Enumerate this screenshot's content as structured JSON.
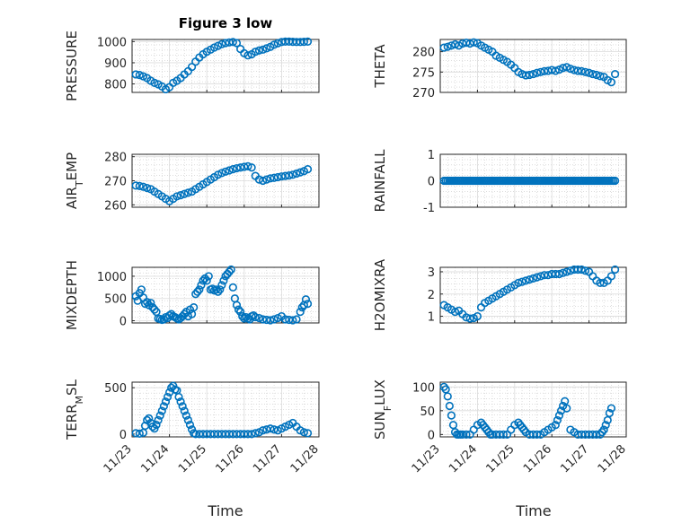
{
  "figure": {
    "title": "Figure 3 low",
    "x_axis_label": "Time",
    "x_tick_labels": [
      "11/23",
      "11/24",
      "11/25",
      "11/26",
      "11/27",
      "11/28"
    ],
    "marker_color": "#0072BD"
  },
  "chart_data": [
    {
      "type": "scatter",
      "ylabel": "PRESSURE",
      "title": "Figure 3 low",
      "xlim": [
        0,
        5
      ],
      "ylim": [
        760,
        1010
      ],
      "yticks": [
        800,
        900,
        1000
      ],
      "grid": true,
      "x": [
        0.1,
        0.2,
        0.3,
        0.4,
        0.5,
        0.6,
        0.7,
        0.8,
        0.9,
        1.0,
        1.1,
        1.2,
        1.3,
        1.4,
        1.5,
        1.6,
        1.7,
        1.8,
        1.9,
        2.0,
        2.1,
        2.2,
        2.3,
        2.4,
        2.5,
        2.6,
        2.7,
        2.8,
        2.9,
        3.0,
        3.1,
        3.2,
        3.3,
        3.4,
        3.5,
        3.6,
        3.7,
        3.8,
        3.9,
        4.0,
        4.1,
        4.2,
        4.3,
        4.4,
        4.5,
        4.6,
        4.7
      ],
      "y": [
        845,
        842,
        836,
        828,
        815,
        805,
        798,
        788,
        775,
        785,
        805,
        815,
        828,
        845,
        860,
        880,
        905,
        925,
        940,
        952,
        962,
        972,
        980,
        988,
        993,
        996,
        998,
        993,
        965,
        945,
        935,
        940,
        952,
        958,
        962,
        968,
        975,
        985,
        992,
        998,
        1000,
        1000,
        999,
        998,
        998,
        999,
        1000
      ]
    },
    {
      "type": "scatter",
      "ylabel": "THETA",
      "xlim": [
        0,
        5
      ],
      "ylim": [
        270,
        283
      ],
      "yticks": [
        270,
        275,
        280
      ],
      "grid": true,
      "x": [
        0.1,
        0.2,
        0.3,
        0.4,
        0.5,
        0.6,
        0.7,
        0.8,
        0.9,
        1.0,
        1.1,
        1.2,
        1.3,
        1.4,
        1.5,
        1.6,
        1.7,
        1.8,
        1.9,
        2.0,
        2.1,
        2.2,
        2.3,
        2.4,
        2.5,
        2.6,
        2.7,
        2.8,
        2.9,
        3.0,
        3.1,
        3.2,
        3.3,
        3.4,
        3.5,
        3.6,
        3.7,
        3.8,
        3.9,
        4.0,
        4.1,
        4.2,
        4.3,
        4.4,
        4.5,
        4.6,
        4.7
      ],
      "y": [
        281,
        281.2,
        281.5,
        281.8,
        281.5,
        282,
        282.2,
        282,
        282.3,
        282.1,
        281.5,
        281,
        280.5,
        280,
        279,
        278.5,
        278,
        277.5,
        276.8,
        276,
        275,
        274.5,
        274.2,
        274.3,
        274.5,
        274.8,
        275,
        275.2,
        275.3,
        275.5,
        275.3,
        275.6,
        276,
        276.2,
        275.8,
        275.5,
        275.3,
        275.2,
        275,
        274.8,
        274.5,
        274.3,
        274,
        273.8,
        273,
        272.5,
        274.5
      ]
    },
    {
      "type": "scatter",
      "ylabel": "AIR_TEMP",
      "ylabel_main": "AIR",
      "ylabel_sub": "T",
      "ylabel_rest": "EMP",
      "xlim": [
        0,
        5
      ],
      "ylim": [
        259,
        281
      ],
      "yticks": [
        260,
        270,
        280
      ],
      "grid": true,
      "x": [
        0.1,
        0.2,
        0.3,
        0.4,
        0.5,
        0.6,
        0.7,
        0.8,
        0.9,
        1.0,
        1.1,
        1.2,
        1.3,
        1.4,
        1.5,
        1.6,
        1.7,
        1.8,
        1.9,
        2.0,
        2.1,
        2.2,
        2.3,
        2.4,
        2.5,
        2.6,
        2.7,
        2.8,
        2.9,
        3.0,
        3.1,
        3.2,
        3.3,
        3.4,
        3.5,
        3.6,
        3.7,
        3.8,
        3.9,
        4.0,
        4.1,
        4.2,
        4.3,
        4.4,
        4.5,
        4.6,
        4.7
      ],
      "y": [
        268,
        267.8,
        267.5,
        267,
        266.5,
        265.5,
        264.5,
        263.5,
        262.5,
        261.5,
        262.5,
        263.5,
        264,
        264.5,
        265,
        265.5,
        266.5,
        267.5,
        268.5,
        269.5,
        270.5,
        271.5,
        272.5,
        273.2,
        273.8,
        274.3,
        274.8,
        275.2,
        275.5,
        275.8,
        276,
        275.5,
        272,
        270.5,
        270,
        270.5,
        271,
        271.2,
        271.5,
        271.8,
        272,
        272.2,
        272.5,
        273,
        273.5,
        274,
        274.8
      ]
    },
    {
      "type": "scatter",
      "ylabel": "RAINFALL",
      "xlim": [
        0,
        5
      ],
      "ylim": [
        -1,
        1
      ],
      "yticks": [
        -1,
        0,
        1
      ],
      "grid": true,
      "x_range": [
        0.1,
        4.7
      ],
      "y_constant": 0
    },
    {
      "type": "scatter",
      "ylabel": "MIXDEPTH",
      "xlim": [
        0,
        5
      ],
      "ylim": [
        -50,
        1200
      ],
      "yticks": [
        0,
        500,
        1000
      ],
      "grid": true,
      "x": [
        0.1,
        0.15,
        0.2,
        0.25,
        0.3,
        0.35,
        0.4,
        0.45,
        0.5,
        0.55,
        0.6,
        0.65,
        0.7,
        0.75,
        0.8,
        0.85,
        0.9,
        0.95,
        1.0,
        1.05,
        1.1,
        1.15,
        1.2,
        1.25,
        1.3,
        1.35,
        1.4,
        1.45,
        1.5,
        1.55,
        1.6,
        1.65,
        1.7,
        1.75,
        1.8,
        1.85,
        1.9,
        1.95,
        2.0,
        2.05,
        2.1,
        2.15,
        2.2,
        2.25,
        2.3,
        2.35,
        2.4,
        2.45,
        2.5,
        2.55,
        2.6,
        2.65,
        2.7,
        2.75,
        2.8,
        2.85,
        2.9,
        2.95,
        3.0,
        3.05,
        3.1,
        3.15,
        3.2,
        3.25,
        3.3,
        3.4,
        3.5,
        3.6,
        3.7,
        3.8,
        3.9,
        4.0,
        4.1,
        4.2,
        4.3,
        4.4,
        4.5,
        4.55,
        4.6,
        4.65,
        4.7
      ],
      "y": [
        550,
        450,
        620,
        700,
        520,
        380,
        420,
        350,
        400,
        300,
        250,
        200,
        50,
        40,
        20,
        30,
        80,
        60,
        120,
        150,
        100,
        80,
        50,
        30,
        60,
        100,
        150,
        200,
        100,
        250,
        150,
        300,
        600,
        650,
        700,
        800,
        900,
        950,
        900,
        1000,
        700,
        720,
        680,
        700,
        650,
        700,
        800,
        900,
        1000,
        1050,
        1100,
        1150,
        750,
        500,
        350,
        250,
        200,
        100,
        50,
        80,
        50,
        30,
        100,
        120,
        80,
        60,
        30,
        20,
        10,
        30,
        60,
        100,
        30,
        20,
        10,
        30,
        200,
        300,
        350,
        480,
        380
      ]
    },
    {
      "type": "scatter",
      "ylabel": "H2OMIXRA",
      "xlim": [
        0,
        5
      ],
      "ylim": [
        0.7,
        3.2
      ],
      "yticks": [
        1,
        2,
        3
      ],
      "grid": true,
      "x": [
        0.1,
        0.2,
        0.3,
        0.4,
        0.5,
        0.6,
        0.7,
        0.8,
        0.9,
        1.0,
        1.1,
        1.2,
        1.3,
        1.4,
        1.5,
        1.6,
        1.7,
        1.8,
        1.9,
        2.0,
        2.1,
        2.2,
        2.3,
        2.4,
        2.5,
        2.6,
        2.7,
        2.8,
        2.9,
        3.0,
        3.1,
        3.2,
        3.3,
        3.4,
        3.5,
        3.6,
        3.7,
        3.8,
        3.9,
        4.0,
        4.1,
        4.2,
        4.3,
        4.4,
        4.5,
        4.6,
        4.7
      ],
      "y": [
        1.5,
        1.4,
        1.3,
        1.2,
        1.25,
        1.1,
        0.95,
        0.9,
        0.92,
        1.0,
        1.4,
        1.6,
        1.7,
        1.8,
        1.9,
        2.0,
        2.1,
        2.2,
        2.3,
        2.4,
        2.5,
        2.55,
        2.6,
        2.65,
        2.7,
        2.75,
        2.8,
        2.85,
        2.85,
        2.9,
        2.9,
        2.9,
        2.95,
        3.0,
        3.05,
        3.1,
        3.1,
        3.1,
        3.05,
        3.0,
        2.8,
        2.6,
        2.5,
        2.5,
        2.6,
        2.8,
        3.1
      ]
    },
    {
      "type": "scatter",
      "ylabel": "TERR_MSL",
      "ylabel_main": "TERR",
      "ylabel_sub": "M",
      "ylabel_rest": "SL",
      "xlim": [
        0,
        5
      ],
      "ylim": [
        -30,
        560
      ],
      "yticks": [
        0,
        500
      ],
      "grid": true,
      "x": [
        0.1,
        0.2,
        0.3,
        0.35,
        0.4,
        0.45,
        0.5,
        0.55,
        0.6,
        0.65,
        0.7,
        0.75,
        0.8,
        0.85,
        0.9,
        0.95,
        1.0,
        1.05,
        1.1,
        1.15,
        1.2,
        1.25,
        1.3,
        1.35,
        1.4,
        1.45,
        1.5,
        1.55,
        1.6,
        1.65,
        1.7,
        1.8,
        1.9,
        2.0,
        2.1,
        2.2,
        2.3,
        2.4,
        2.5,
        2.6,
        2.7,
        2.8,
        2.9,
        3.0,
        3.1,
        3.2,
        3.3,
        3.4,
        3.5,
        3.6,
        3.7,
        3.8,
        3.9,
        4.0,
        4.1,
        4.2,
        4.3,
        4.4,
        4.5,
        4.6,
        4.7
      ],
      "y": [
        10,
        5,
        15,
        90,
        150,
        170,
        120,
        80,
        60,
        100,
        150,
        200,
        250,
        300,
        350,
        400,
        450,
        500,
        520,
        480,
        470,
        400,
        350,
        300,
        250,
        200,
        150,
        100,
        50,
        10,
        0,
        0,
        0,
        0,
        0,
        0,
        0,
        0,
        0,
        0,
        0,
        0,
        0,
        0,
        0,
        0,
        10,
        20,
        40,
        50,
        60,
        50,
        40,
        60,
        80,
        100,
        120,
        80,
        40,
        20,
        10
      ]
    },
    {
      "type": "scatter",
      "ylabel": "SUN_FLUX",
      "ylabel_main": "SUN",
      "ylabel_sub": "F",
      "ylabel_rest": "LUX",
      "xlim": [
        0,
        5
      ],
      "ylim": [
        -5,
        110
      ],
      "yticks": [
        0,
        50,
        100
      ],
      "grid": true,
      "x": [
        0.1,
        0.15,
        0.2,
        0.25,
        0.3,
        0.35,
        0.4,
        0.45,
        0.5,
        0.55,
        0.6,
        0.7,
        0.8,
        0.9,
        1.0,
        1.1,
        1.15,
        1.2,
        1.25,
        1.3,
        1.35,
        1.4,
        1.5,
        1.6,
        1.7,
        1.8,
        1.9,
        2.0,
        2.1,
        2.15,
        2.2,
        2.25,
        2.3,
        2.4,
        2.5,
        2.6,
        2.7,
        2.8,
        2.9,
        3.0,
        3.1,
        3.15,
        3.2,
        3.25,
        3.3,
        3.35,
        3.4,
        3.5,
        3.6,
        3.7,
        3.8,
        3.9,
        4.0,
        4.1,
        4.2,
        4.3,
        4.35,
        4.4,
        4.45,
        4.5,
        4.55,
        4.6
      ],
      "y": [
        100,
        95,
        80,
        60,
        40,
        20,
        5,
        0,
        0,
        0,
        0,
        0,
        0,
        10,
        20,
        25,
        20,
        15,
        10,
        5,
        0,
        0,
        0,
        0,
        0,
        0,
        10,
        20,
        25,
        20,
        15,
        10,
        5,
        0,
        0,
        0,
        0,
        5,
        10,
        15,
        20,
        30,
        40,
        50,
        60,
        70,
        55,
        10,
        5,
        0,
        0,
        0,
        0,
        0,
        0,
        0,
        5,
        10,
        20,
        30,
        45,
        55
      ]
    }
  ]
}
